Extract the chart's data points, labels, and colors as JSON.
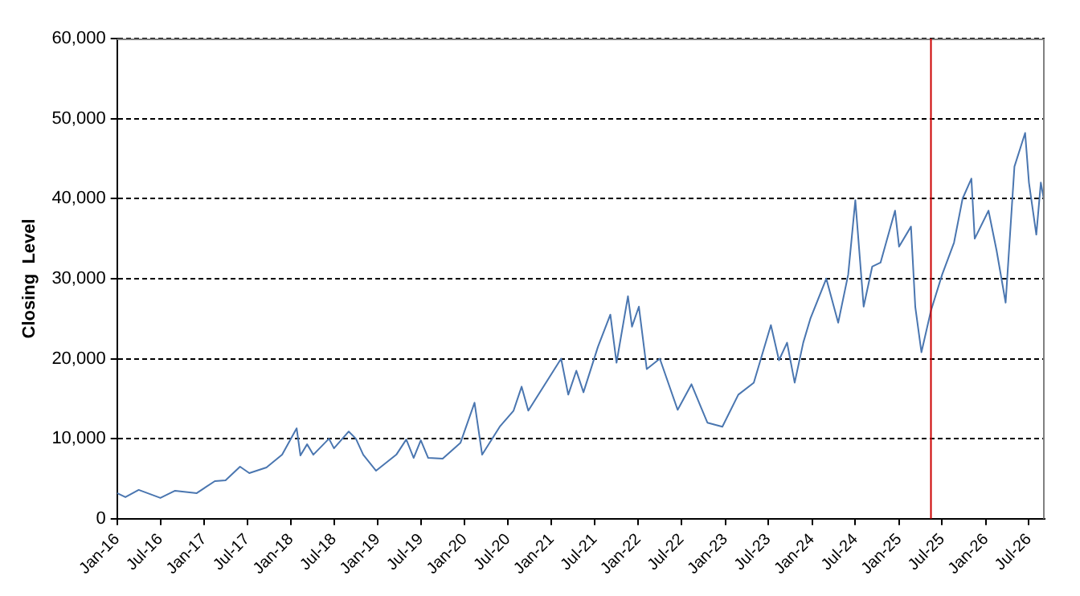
{
  "chart_data": {
    "type": "line",
    "ylabel": "Closing  Level",
    "x": [
      "2016-01-01",
      "2016-02-05",
      "2016-04-01",
      "2016-07-01",
      "2016-09-01",
      "2016-12-01",
      "2017-02-15",
      "2017-04-01",
      "2017-06-01",
      "2017-07-10",
      "2017-09-20",
      "2017-11-25",
      "2018-01-25",
      "2018-02-10",
      "2018-03-10",
      "2018-04-05",
      "2018-06-10",
      "2018-07-01",
      "2018-09-01",
      "2018-10-01",
      "2018-11-01",
      "2018-12-25",
      "2019-03-20",
      "2019-05-01",
      "2019-06-01",
      "2019-07-01",
      "2019-08-01",
      "2019-10-01",
      "2019-12-15",
      "2020-02-12",
      "2020-03-15",
      "2020-05-28",
      "2020-07-25",
      "2020-08-28",
      "2020-09-25",
      "2021-02-10",
      "2021-03-12",
      "2021-04-15",
      "2021-05-15",
      "2021-07-15",
      "2021-09-05",
      "2021-10-01",
      "2021-11-18",
      "2021-12-05",
      "2022-01-03",
      "2022-02-05",
      "2022-04-01",
      "2022-06-15",
      "2022-08-12",
      "2022-10-18",
      "2022-12-20",
      "2023-02-25",
      "2023-05-01",
      "2023-07-12",
      "2023-08-15",
      "2023-09-18",
      "2023-10-20",
      "2023-11-25",
      "2023-12-25",
      "2024-03-01",
      "2024-04-20",
      "2024-06-01",
      "2024-07-01",
      "2024-08-05",
      "2024-09-10",
      "2024-10-15",
      "2024-12-15",
      "2025-01-01",
      "2025-02-20",
      "2025-03-10",
      "2025-04-05",
      "2025-05-15",
      "2025-07-01",
      "2025-08-20",
      "2025-09-25",
      "2025-11-01",
      "2025-11-15",
      "2026-01-12",
      "2026-02-15",
      "2026-03-25",
      "2026-05-01",
      "2026-06-15",
      "2026-07-01",
      "2026-08-01",
      "2026-08-20",
      "2026-09-01"
    ],
    "series": [
      {
        "color": "#4a76b0",
        "values": [
          3200,
          2700,
          3600,
          2600,
          3500,
          3200,
          4700,
          4800,
          6500,
          5700,
          6400,
          8000,
          11300,
          7900,
          9300,
          8000,
          10000,
          8800,
          10900,
          10000,
          8000,
          6000,
          8000,
          9900,
          7600,
          9800,
          7600,
          7500,
          9500,
          14500,
          8000,
          11500,
          13500,
          16500,
          13500,
          20000,
          15500,
          18500,
          15800,
          21500,
          25500,
          19500,
          27800,
          24000,
          26500,
          18700,
          20000,
          13600,
          16800,
          12000,
          11500,
          15500,
          17000,
          24200,
          19800,
          22000,
          17000,
          22000,
          25000,
          30000,
          24500,
          30500,
          39800,
          26500,
          31500,
          32000,
          38500,
          34000,
          36500,
          26500,
          20800,
          26000,
          30500,
          34500,
          40000,
          42500,
          35000,
          38500,
          33500,
          27000,
          44000,
          48200,
          42000,
          35500,
          42000,
          40000
        ]
      }
    ],
    "xlim": [
      "2016-01-01",
      "2026-09-05"
    ],
    "xticks": [
      {
        "value": "2016-01",
        "label": "Jan-16"
      },
      {
        "value": "2016-07",
        "label": "Jul-16"
      },
      {
        "value": "2017-01",
        "label": "Jan-17"
      },
      {
        "value": "2017-07",
        "label": "Jul-17"
      },
      {
        "value": "2018-01",
        "label": "Jan-18"
      },
      {
        "value": "2018-07",
        "label": "Jul-18"
      },
      {
        "value": "2019-01",
        "label": "Jan-19"
      },
      {
        "value": "2019-07",
        "label": "Jul-19"
      },
      {
        "value": "2020-01",
        "label": "Jan-20"
      },
      {
        "value": "2020-07",
        "label": "Jul-20"
      },
      {
        "value": "2021-01",
        "label": "Jan-21"
      },
      {
        "value": "2021-07",
        "label": "Jul-21"
      },
      {
        "value": "2022-01",
        "label": "Jan-22"
      },
      {
        "value": "2022-07",
        "label": "Jul-22"
      },
      {
        "value": "2023-01",
        "label": "Jan-23"
      },
      {
        "value": "2023-07",
        "label": "Jul-23"
      },
      {
        "value": "2024-01",
        "label": "Jan-24"
      },
      {
        "value": "2024-07",
        "label": "Jul-24"
      },
      {
        "value": "2025-01",
        "label": "Jan-25"
      },
      {
        "value": "2025-07",
        "label": "Jul-25"
      },
      {
        "value": "2026-01",
        "label": "Jan-26"
      },
      {
        "value": "2026-07",
        "label": "Jul-26"
      }
    ],
    "ylim": [
      0,
      60000
    ],
    "yticks": [
      {
        "value": 0,
        "label": "0"
      },
      {
        "value": 10000,
        "label": "10,000"
      },
      {
        "value": 20000,
        "label": "20,000"
      },
      {
        "value": 30000,
        "label": "30,000"
      },
      {
        "value": 40000,
        "label": "40,000"
      },
      {
        "value": 50000,
        "label": "50,000"
      },
      {
        "value": 60000,
        "label": "60,000"
      }
    ],
    "grid": "y",
    "legend": false,
    "marker": "none",
    "line_style": "solid",
    "ref_lines": [
      {
        "axis": "x",
        "value": "2025-05-15",
        "color": "#cc0000"
      }
    ]
  }
}
